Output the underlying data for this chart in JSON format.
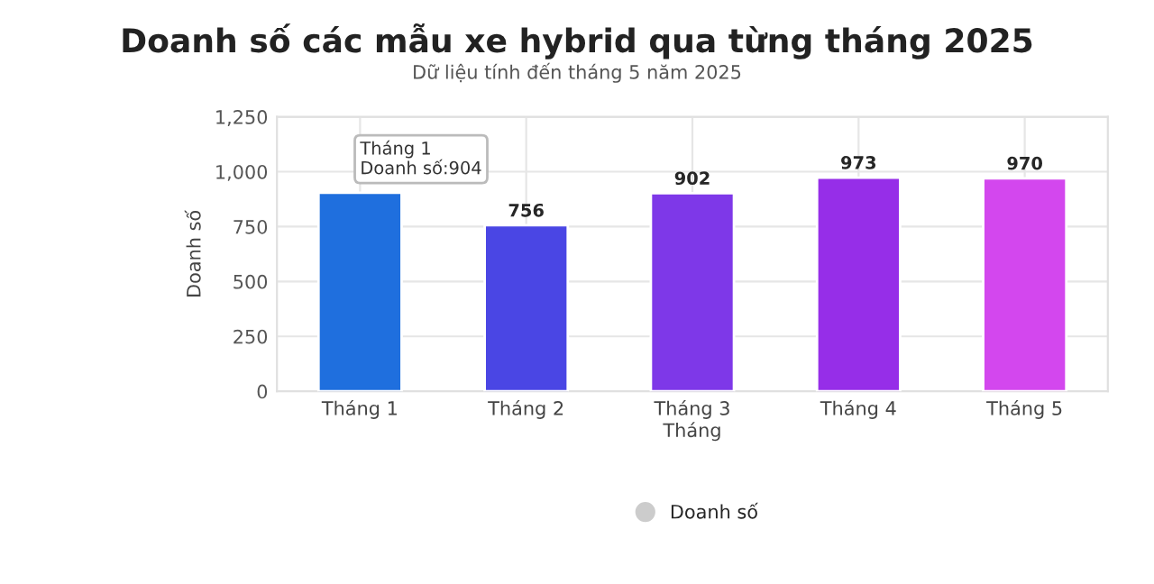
{
  "chart_data": {
    "type": "bar",
    "title": "Doanh số các mẫu xe hybrid qua từng tháng 2025",
    "subtitle": "Dữ liệu tính đến tháng 5 năm 2025",
    "ylabel": "Doanh số",
    "categories": [
      "Tháng 1",
      "Tháng 2",
      "Tháng 3\nTháng",
      "Tháng 4",
      "Tháng 5"
    ],
    "series": [
      {
        "name": "Doanh số",
        "color": "#cccccc",
        "values": [
          904,
          756,
          902,
          973,
          970
        ],
        "colors": [
          "#1f6fde",
          "#4a46e4",
          "#7e38e8",
          "#962ee8",
          "#d347ee"
        ],
        "value_labels": [
          null,
          "756",
          "902",
          "973",
          "970"
        ]
      }
    ],
    "annotations": [
      {
        "text": "Tháng 1\nDoanh số:904",
        "x": "Tháng 1",
        "y": 904
      }
    ],
    "ylim": [
      0,
      1250
    ],
    "yticks": [
      0,
      250,
      500,
      750,
      {
        "value": 1000,
        "label": "1,000"
      },
      {
        "value": 1250,
        "label": "1,250"
      }
    ],
    "grid": true,
    "legend": "bottom"
  }
}
